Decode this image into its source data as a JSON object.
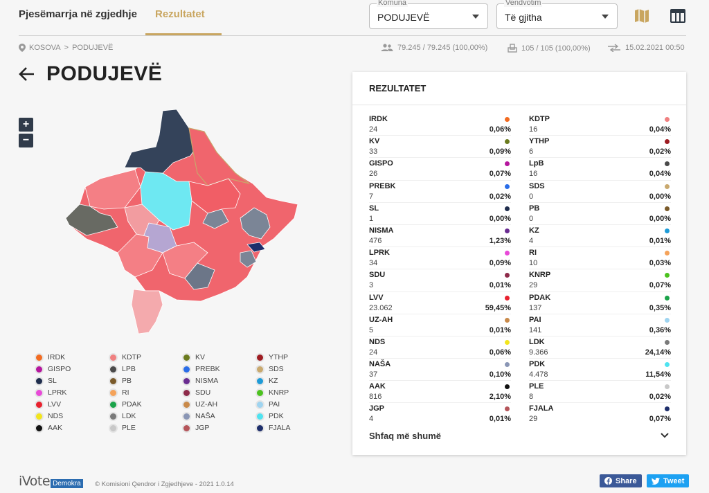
{
  "nav": {
    "tab_elections": "Pjesëmarrja në zgjedhje",
    "tab_results": "Rezultatet"
  },
  "filters": {
    "municipality_label": "Komuna",
    "municipality_value": "PODUJEVË",
    "polling_label": "Vendvotim",
    "polling_value": "Të gjitha"
  },
  "icons": {
    "map_view": "map-icon",
    "table_view": "table-icon",
    "location": "location-pin-icon",
    "voters": "people-icon",
    "stations": "ballot-box-icon",
    "updated": "sync-arrows-icon",
    "back": "arrow-left-icon"
  },
  "breadcrumb": {
    "country": "KOSOVA",
    "separator": ">",
    "municipality": "PODUJEVË"
  },
  "stats": {
    "voters": "79.245 / 79.245 (100,00%)",
    "stations": "105 / 105 (100,00%)",
    "updated": "15.02.2021 00:50"
  },
  "page": {
    "title": "PODUJEVË",
    "zoom_in": "+",
    "zoom_out": "−"
  },
  "legend": [
    {
      "label": "IRDK",
      "color": "#f26b21"
    },
    {
      "label": "KDTP",
      "color": "#f08080"
    },
    {
      "label": "KV",
      "color": "#6b7b1e"
    },
    {
      "label": "YTHP",
      "color": "#9e1c22"
    },
    {
      "label": "GISPO",
      "color": "#b5179e"
    },
    {
      "label": "LPB",
      "color": "#4a4a4a"
    },
    {
      "label": "PREBK",
      "color": "#2a6de8"
    },
    {
      "label": "SDS",
      "color": "#c9a96e"
    },
    {
      "label": "SL",
      "color": "#1f2d4d"
    },
    {
      "label": "PB",
      "color": "#7a5a2a"
    },
    {
      "label": "NISMA",
      "color": "#6a2c91"
    },
    {
      "label": "KZ",
      "color": "#1e9bd7"
    },
    {
      "label": "LPRK",
      "color": "#e84ad8"
    },
    {
      "label": "RI",
      "color": "#f5a35a"
    },
    {
      "label": "SDU",
      "color": "#8e2b4a"
    },
    {
      "label": "KNRP",
      "color": "#4cc21f"
    },
    {
      "label": "LVV",
      "color": "#e8212e"
    },
    {
      "label": "PDAK",
      "color": "#1ba34a"
    },
    {
      "label": "UZ-AH",
      "color": "#c98a4a"
    },
    {
      "label": "PAI",
      "color": "#9fd4f0"
    },
    {
      "label": "NDS",
      "color": "#f2e51d"
    },
    {
      "label": "LDK",
      "color": "#7a7a7a"
    },
    {
      "label": "NAŠA",
      "color": "#8a96b5"
    },
    {
      "label": "PDK",
      "color": "#4fe3f0"
    },
    {
      "label": "AAK",
      "color": "#111111"
    },
    {
      "label": "PLE",
      "color": "#c8c8c8"
    },
    {
      "label": "JGP",
      "color": "#b5555a"
    },
    {
      "label": "FJALA",
      "color": "#1e2e6b"
    }
  ],
  "results": {
    "title": "REZULTATET",
    "show_more": "Shfaq më shumë",
    "left": [
      {
        "name": "IRDK",
        "votes": "24",
        "pct": "0,06%",
        "color": "#f26b21"
      },
      {
        "name": "KV",
        "votes": "33",
        "pct": "0,09%",
        "color": "#6b7b1e"
      },
      {
        "name": "GISPO",
        "votes": "26",
        "pct": "0,07%",
        "color": "#b5179e"
      },
      {
        "name": "PREBK",
        "votes": "7",
        "pct": "0,02%",
        "color": "#2a6de8"
      },
      {
        "name": "SL",
        "votes": "1",
        "pct": "0,00%",
        "color": "#1f2d4d"
      },
      {
        "name": "NISMA",
        "votes": "476",
        "pct": "1,23%",
        "color": "#6a2c91"
      },
      {
        "name": "LPRK",
        "votes": "34",
        "pct": "0,09%",
        "color": "#e84ad8"
      },
      {
        "name": "SDU",
        "votes": "3",
        "pct": "0,01%",
        "color": "#8e2b4a"
      },
      {
        "name": "LVV",
        "votes": "23.062",
        "pct": "59,45%",
        "color": "#e8212e"
      },
      {
        "name": "UZ-AH",
        "votes": "5",
        "pct": "0,01%",
        "color": "#c98a4a"
      },
      {
        "name": "NDS",
        "votes": "24",
        "pct": "0,06%",
        "color": "#f2e51d"
      },
      {
        "name": "NAŠA",
        "votes": "37",
        "pct": "0,10%",
        "color": "#8a96b5"
      },
      {
        "name": "AAK",
        "votes": "816",
        "pct": "2,10%",
        "color": "#111111"
      },
      {
        "name": "JGP",
        "votes": "4",
        "pct": "0,01%",
        "color": "#b5555a"
      }
    ],
    "right": [
      {
        "name": "KDTP",
        "votes": "16",
        "pct": "0,04%",
        "color": "#f08080"
      },
      {
        "name": "YTHP",
        "votes": "6",
        "pct": "0,02%",
        "color": "#9e1c22"
      },
      {
        "name": "LpB",
        "votes": "16",
        "pct": "0,04%",
        "color": "#4a4a4a"
      },
      {
        "name": "SDS",
        "votes": "0",
        "pct": "0,00%",
        "color": "#c9a96e"
      },
      {
        "name": "PB",
        "votes": "0",
        "pct": "0,00%",
        "color": "#7a5a2a"
      },
      {
        "name": "KZ",
        "votes": "4",
        "pct": "0,01%",
        "color": "#1e9bd7"
      },
      {
        "name": "RI",
        "votes": "10",
        "pct": "0,03%",
        "color": "#f5a35a"
      },
      {
        "name": "KNRP",
        "votes": "29",
        "pct": "0,07%",
        "color": "#4cc21f"
      },
      {
        "name": "PDAK",
        "votes": "137",
        "pct": "0,35%",
        "color": "#1ba34a"
      },
      {
        "name": "PAI",
        "votes": "141",
        "pct": "0,36%",
        "color": "#9fd4f0"
      },
      {
        "name": "LDK",
        "votes": "9.366",
        "pct": "24,14%",
        "color": "#7a7a7a"
      },
      {
        "name": "PDK",
        "votes": "4.478",
        "pct": "11,54%",
        "color": "#4fe3f0"
      },
      {
        "name": "PLE",
        "votes": "8",
        "pct": "0,02%",
        "color": "#c8c8c8"
      },
      {
        "name": "FJALA",
        "votes": "29",
        "pct": "0,07%",
        "color": "#1e2e6b"
      }
    ]
  },
  "footer": {
    "logo_text": "iVote",
    "logo_badge": "Demokra",
    "copyright": "© Komisioni Qendror i Zgjedhjeve - 2021 1.0.14",
    "share_label": "Share",
    "tweet_label": "Tweet"
  },
  "colors": {
    "accent": "#c9a660",
    "lvv": "#f0606a",
    "lvv_light": "#f29ca0",
    "ldk": "#7b8596",
    "ldk_dark": "#34435a",
    "pdk": "#6ee8f2",
    "nisma": "#b5a6d2",
    "facebook": "#3b5998",
    "twitter": "#1da1f2"
  }
}
